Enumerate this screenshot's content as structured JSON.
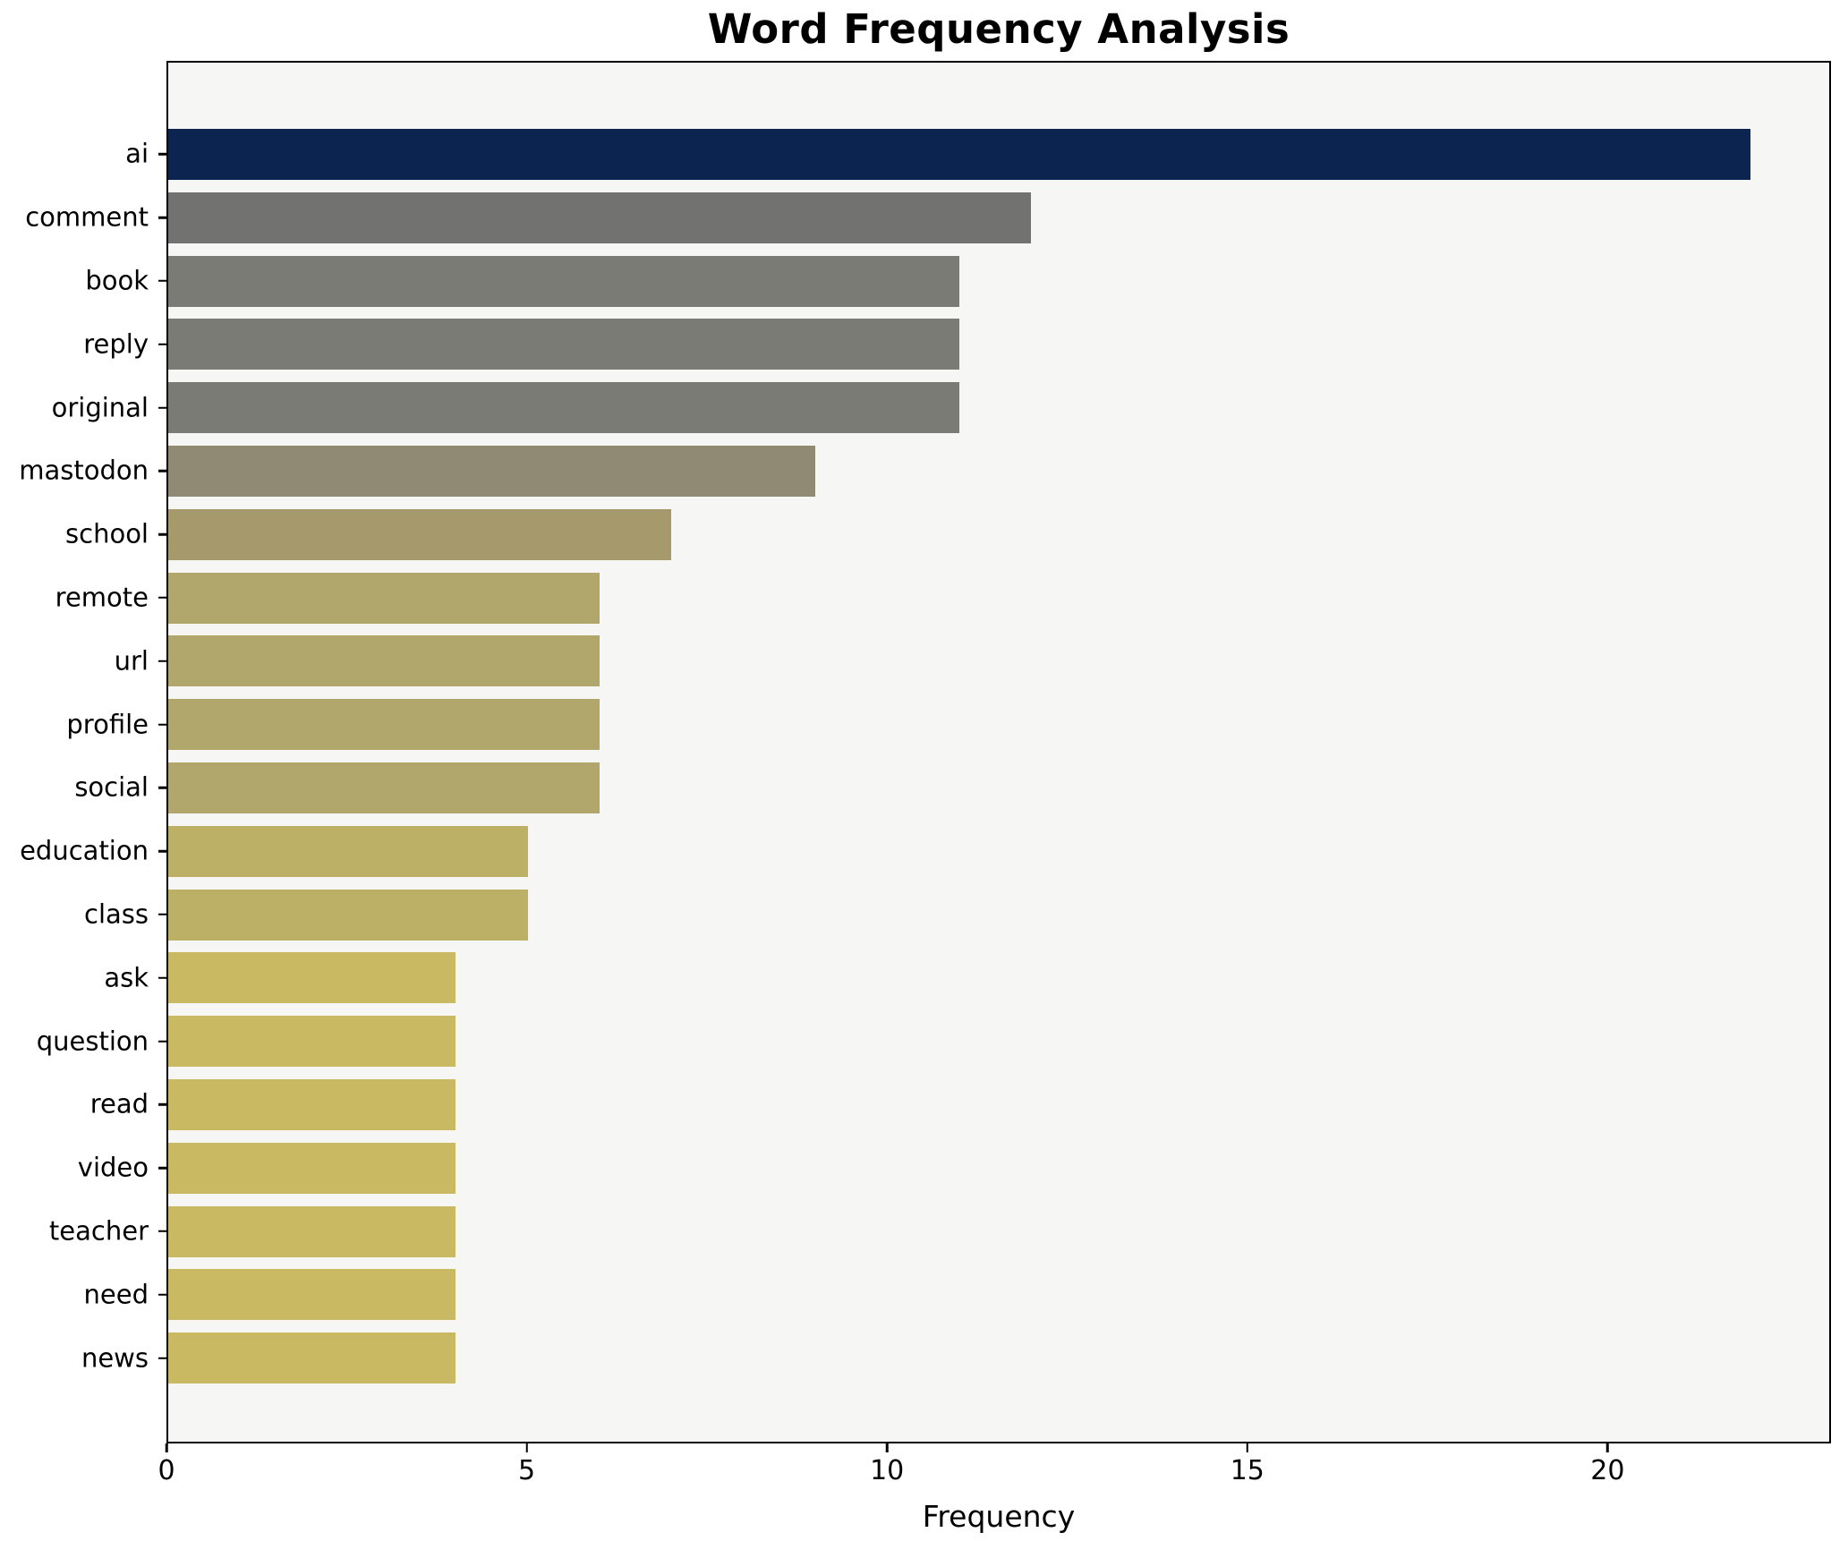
{
  "chart_data": {
    "type": "bar",
    "orientation": "horizontal",
    "title": "Word Frequency Analysis",
    "xlabel": "Frequency",
    "ylabel": "",
    "categories": [
      "ai",
      "comment",
      "book",
      "reply",
      "original",
      "mastodon",
      "school",
      "remote",
      "url",
      "profile",
      "social",
      "education",
      "class",
      "ask",
      "question",
      "read",
      "video",
      "teacher",
      "need",
      "news"
    ],
    "values": [
      22,
      12,
      11,
      11,
      11,
      9,
      7,
      6,
      6,
      6,
      6,
      5,
      5,
      4,
      4,
      4,
      4,
      4,
      4,
      4
    ],
    "bar_colors": [
      "#0b2450",
      "#727370",
      "#7b7b76",
      "#7b7b76",
      "#7b7b76",
      "#908a74",
      "#a69a6c",
      "#b1a66b",
      "#b1a66b",
      "#b1a66b",
      "#b1a66b",
      "#bcaf66",
      "#bcaf66",
      "#c8b962",
      "#c8b962",
      "#c8b962",
      "#c8b962",
      "#c8b962",
      "#c8b962",
      "#c8b962"
    ],
    "xticks": [
      0,
      5,
      10,
      15,
      20
    ],
    "xlim": [
      0,
      23.1
    ],
    "grid": false,
    "legend": false,
    "plot_background": "#f6f6f5",
    "figure_background": "#ffffff"
  }
}
